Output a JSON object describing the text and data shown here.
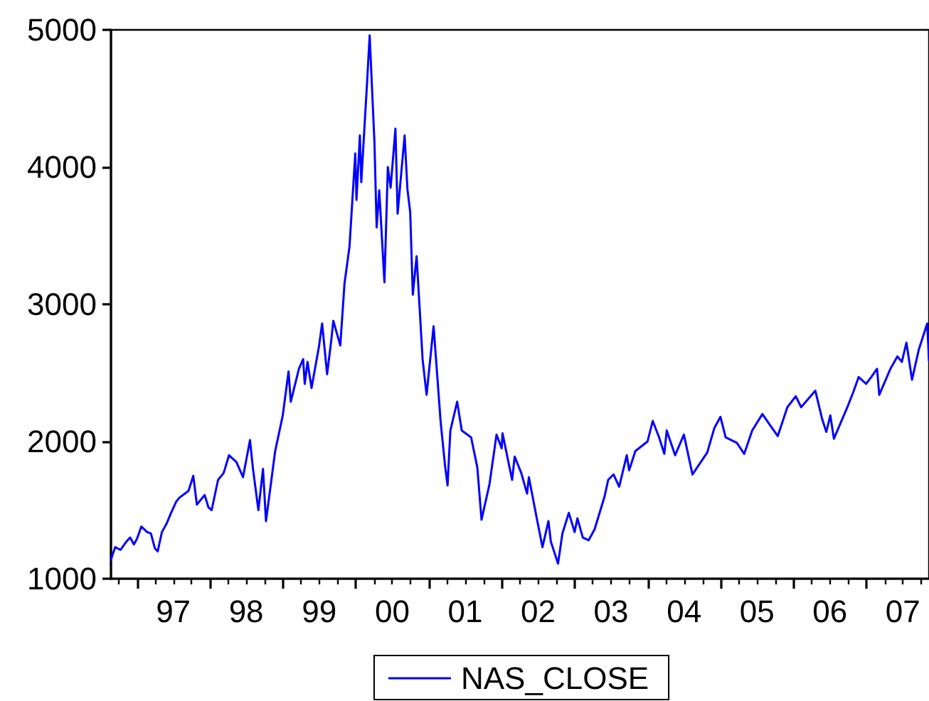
{
  "chart_data": {
    "type": "line",
    "x": [
      "1996-08-23",
      "1996-09-13",
      "1996-10-10",
      "1996-11-08",
      "1996-11-27",
      "1996-12-16",
      "1996-12-31",
      "1997-01-22",
      "1997-02-20",
      "1997-03-11",
      "1997-03-31",
      "1997-04-14",
      "1997-05-05",
      "1997-05-28",
      "1997-06-20",
      "1997-07-15",
      "1997-07-31",
      "1997-09-15",
      "1997-10-09",
      "1997-10-27",
      "1997-12-05",
      "1997-12-24",
      "1998-01-09",
      "1998-02-10",
      "1998-03-10",
      "1998-04-06",
      "1998-05-13",
      "1998-06-15",
      "1998-07-20",
      "1998-08-04",
      "1998-08-31",
      "1998-09-23",
      "1998-10-08",
      "1998-11-23",
      "1998-12-31",
      "1999-01-29",
      "1999-02-09",
      "1999-03-22",
      "1999-04-12",
      "1999-04-20",
      "1999-05-04",
      "1999-05-24",
      "1999-06-30",
      "1999-07-16",
      "1999-08-10",
      "1999-08-31",
      "1999-09-10",
      "1999-10-15",
      "1999-11-05",
      "1999-11-30",
      "1999-12-29",
      "2000-01-04",
      "2000-01-21",
      "2000-01-28",
      "2000-02-25",
      "2000-03-10",
      "2000-04-03",
      "2000-04-14",
      "2000-04-27",
      "2000-05-23",
      "2000-06-09",
      "2000-06-23",
      "2000-07-17",
      "2000-07-28",
      "2000-09-01",
      "2000-09-15",
      "2000-09-29",
      "2000-10-12",
      "2000-10-31",
      "2000-11-30",
      "2000-12-20",
      "2001-01-24",
      "2001-02-28",
      "2001-03-22",
      "2001-04-04",
      "2001-04-18",
      "2001-05-22",
      "2001-06-14",
      "2001-07-31",
      "2001-08-31",
      "2001-09-21",
      "2001-10-31",
      "2001-12-05",
      "2001-12-31",
      "2002-01-04",
      "2002-02-21",
      "2002-03-06",
      "2002-04-08",
      "2002-05-07",
      "2002-05-16",
      "2002-06-26",
      "2002-07-23",
      "2002-08-22",
      "2002-09-03",
      "2002-10-09",
      "2002-10-31",
      "2002-12-02",
      "2002-12-31",
      "2003-01-14",
      "2003-02-10",
      "2003-03-11",
      "2003-04-10",
      "2003-05-30",
      "2003-06-17",
      "2003-07-14",
      "2003-08-11",
      "2003-09-18",
      "2003-09-30",
      "2003-10-31",
      "2003-12-31",
      "2004-01-26",
      "2004-02-27",
      "2004-03-24",
      "2004-04-05",
      "2004-05-17",
      "2004-06-30",
      "2004-08-12",
      "2004-10-25",
      "2004-11-30",
      "2004-12-30",
      "2005-01-25",
      "2005-03-22",
      "2005-04-28",
      "2005-06-07",
      "2005-07-28",
      "2005-08-30",
      "2005-10-13",
      "2005-11-30",
      "2006-01-11",
      "2006-02-07",
      "2006-04-19",
      "2006-05-22",
      "2006-06-13",
      "2006-07-03",
      "2006-07-21",
      "2006-09-29",
      "2006-10-26",
      "2006-11-22",
      "2006-12-29",
      "2007-01-24",
      "2007-02-22",
      "2007-03-05",
      "2007-04-30",
      "2007-06-04",
      "2007-06-26",
      "2007-07-19",
      "2007-08-16",
      "2007-09-19",
      "2007-10-31",
      "2007-11-09"
    ],
    "series": [
      {
        "name": "NAS_CLOSE",
        "color": "#0000ff",
        "values": [
          1140,
          1230,
          1210,
          1270,
          1300,
          1250,
          1290,
          1380,
          1340,
          1330,
          1220,
          1200,
          1340,
          1400,
          1480,
          1560,
          1590,
          1640,
          1750,
          1540,
          1610,
          1520,
          1500,
          1720,
          1770,
          1900,
          1850,
          1740,
          2010,
          1800,
          1500,
          1800,
          1420,
          1930,
          2190,
          2510,
          2290,
          2530,
          2600,
          2420,
          2580,
          2390,
          2690,
          2860,
          2490,
          2740,
          2880,
          2700,
          3150,
          3420,
          4100,
          3760,
          4230,
          3890,
          4590,
          4960,
          4180,
          3560,
          3830,
          3160,
          4000,
          3850,
          4280,
          3660,
          4230,
          3840,
          3670,
          3070,
          3350,
          2600,
          2340,
          2840,
          2150,
          1830,
          1680,
          2080,
          2290,
          2080,
          2030,
          1810,
          1430,
          1690,
          2050,
          1950,
          2060,
          1720,
          1890,
          1770,
          1620,
          1740,
          1430,
          1230,
          1420,
          1270,
          1110,
          1330,
          1480,
          1340,
          1440,
          1300,
          1280,
          1360,
          1600,
          1720,
          1760,
          1670,
          1900,
          1790,
          1930,
          2000,
          2150,
          2030,
          1910,
          2080,
          1900,
          2050,
          1760,
          1920,
          2100,
          2180,
          2030,
          1990,
          1910,
          2080,
          2200,
          2130,
          2040,
          2250,
          2330,
          2250,
          2370,
          2170,
          2070,
          2190,
          2020,
          2260,
          2360,
          2470,
          2420,
          2470,
          2530,
          2340,
          2530,
          2620,
          2580,
          2720,
          2450,
          2670,
          2860,
          2590
        ]
      }
    ],
    "xlim": [
      "1996-08-23",
      "2007-11-09"
    ],
    "xticks": [
      {
        "value": "1996-10-01",
        "label": null
      },
      {
        "value": "1997-01-01",
        "label": null
      },
      {
        "value": "1997-04-01",
        "label": null
      },
      {
        "value": "1997-07-01",
        "label": "97"
      },
      {
        "value": "1997-10-01",
        "label": null
      },
      {
        "value": "1998-01-01",
        "label": null
      },
      {
        "value": "1998-04-01",
        "label": null
      },
      {
        "value": "1998-07-01",
        "label": "98"
      },
      {
        "value": "1998-10-01",
        "label": null
      },
      {
        "value": "1999-01-01",
        "label": null
      },
      {
        "value": "1999-04-01",
        "label": null
      },
      {
        "value": "1999-07-01",
        "label": "99"
      },
      {
        "value": "1999-10-01",
        "label": null
      },
      {
        "value": "2000-01-01",
        "label": null
      },
      {
        "value": "2000-04-01",
        "label": null
      },
      {
        "value": "2000-07-01",
        "label": "00"
      },
      {
        "value": "2000-10-01",
        "label": null
      },
      {
        "value": "2001-01-01",
        "label": null
      },
      {
        "value": "2001-04-01",
        "label": null
      },
      {
        "value": "2001-07-01",
        "label": "01"
      },
      {
        "value": "2001-10-01",
        "label": null
      },
      {
        "value": "2002-01-01",
        "label": null
      },
      {
        "value": "2002-04-01",
        "label": null
      },
      {
        "value": "2002-07-01",
        "label": "02"
      },
      {
        "value": "2002-10-01",
        "label": null
      },
      {
        "value": "2003-01-01",
        "label": null
      },
      {
        "value": "2003-04-01",
        "label": null
      },
      {
        "value": "2003-07-01",
        "label": "03"
      },
      {
        "value": "2003-10-01",
        "label": null
      },
      {
        "value": "2004-01-01",
        "label": null
      },
      {
        "value": "2004-04-01",
        "label": null
      },
      {
        "value": "2004-07-01",
        "label": "04"
      },
      {
        "value": "2004-10-01",
        "label": null
      },
      {
        "value": "2005-01-01",
        "label": null
      },
      {
        "value": "2005-04-01",
        "label": null
      },
      {
        "value": "2005-07-01",
        "label": "05"
      },
      {
        "value": "2005-10-01",
        "label": null
      },
      {
        "value": "2006-01-01",
        "label": null
      },
      {
        "value": "2006-04-01",
        "label": null
      },
      {
        "value": "2006-07-01",
        "label": "06"
      },
      {
        "value": "2006-10-01",
        "label": null
      },
      {
        "value": "2007-01-01",
        "label": null
      },
      {
        "value": "2007-04-01",
        "label": null
      },
      {
        "value": "2007-07-01",
        "label": "07"
      },
      {
        "value": "2007-10-01",
        "label": null
      }
    ],
    "ylim": [
      1000,
      5000
    ],
    "yticks": [
      1000,
      2000,
      3000,
      4000,
      5000
    ],
    "grid": false,
    "legend": "bottom",
    "marker": "none",
    "line_style": "solid"
  }
}
